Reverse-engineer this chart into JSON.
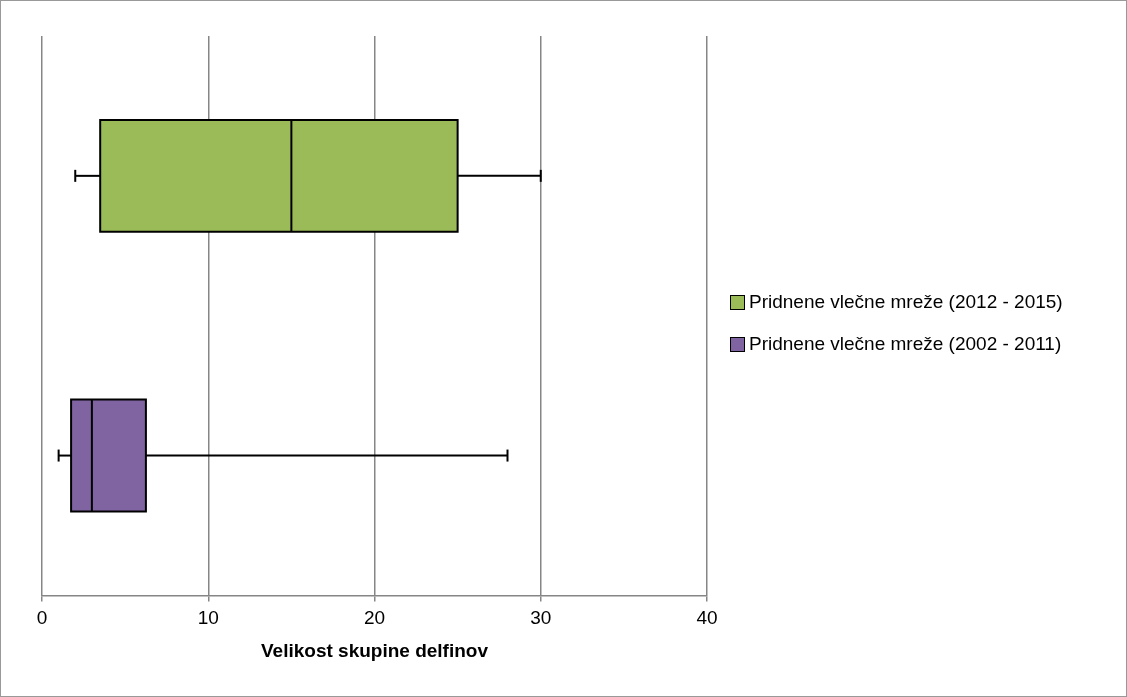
{
  "chart_data": {
    "type": "box",
    "orientation": "horizontal",
    "xlabel": "Velikost skupine delfinov",
    "categories": [
      null,
      null
    ],
    "series": [
      {
        "name": "Pridnene vlečne mreže (2012 - 2015)",
        "color": "#9bbb59",
        "boxes": [
          {
            "low": 2,
            "q1": 3.5,
            "median": 15,
            "q3": 25,
            "high": 30
          },
          null
        ]
      },
      {
        "name": "Pridnene vlečne mreže (2002 - 2011)",
        "color": "#8064a2",
        "boxes": [
          null,
          {
            "low": 1,
            "q1": 1.75,
            "median": 3,
            "q3": 6.25,
            "high": 28
          }
        ]
      }
    ],
    "xlim": [
      0,
      40
    ],
    "xticks": [
      0,
      10,
      20,
      30,
      40
    ],
    "grid": "x",
    "legend": "right"
  }
}
